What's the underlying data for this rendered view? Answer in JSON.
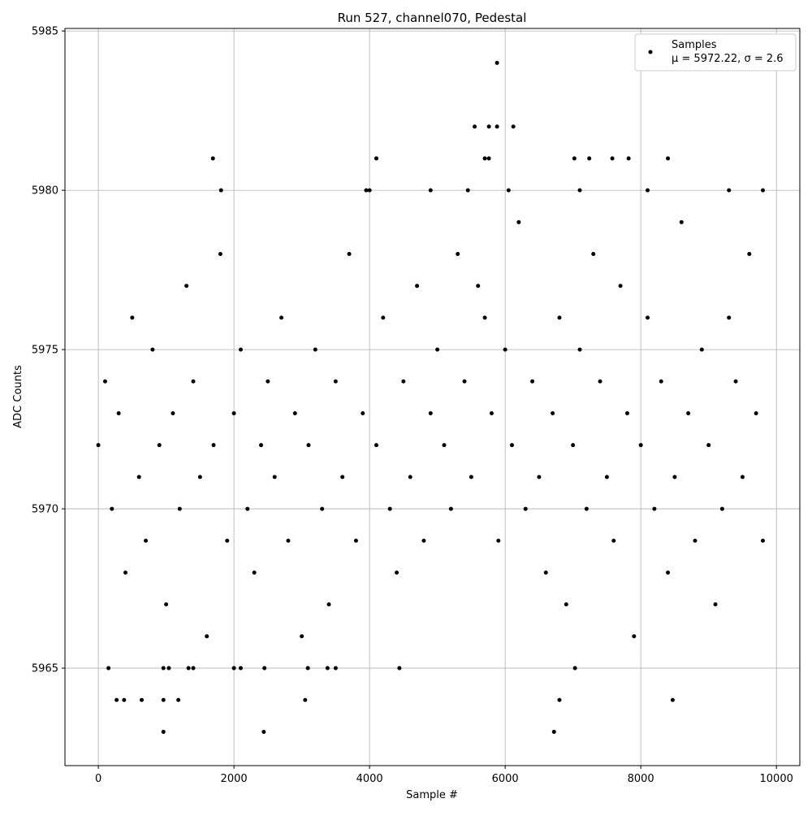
{
  "chart_data": {
    "type": "scatter",
    "title": "Run 527, channel070, Pedestal",
    "x_label": "Sample #",
    "y_label": "ADC Counts",
    "legend_note": "μ = 5972.22, σ = 2.6",
    "legend": "upper right",
    "grid": true,
    "xlim": [
      -492,
      10345
    ],
    "ylim": [
      5961.94,
      5985.08
    ],
    "xticks": [
      0,
      2000,
      4000,
      6000,
      8000,
      10000
    ],
    "yticks": [
      5965,
      5970,
      5975,
      5980,
      5985
    ],
    "series": [
      {
        "name": "Samples",
        "color": "#000000",
        "x": [
          0,
          100,
          200,
          300,
          400,
          500,
          600,
          700,
          800,
          900,
          1000,
          1100,
          1200,
          1300,
          1400,
          1500,
          1600,
          1700,
          1800,
          1900,
          2000,
          2100,
          2200,
          2300,
          2400,
          2500,
          2600,
          2700,
          2800,
          2900,
          3000,
          3100,
          3200,
          3300,
          3400,
          3500,
          3600,
          3700,
          3800,
          3900,
          4000,
          4100,
          4200,
          4300,
          4400,
          4500,
          4600,
          4700,
          4800,
          4900,
          5000,
          5100,
          5200,
          5300,
          5400,
          5500,
          5600,
          5700,
          5800,
          5900,
          6000,
          6100,
          6200,
          6300,
          6400,
          6500,
          6600,
          6700,
          6800,
          6900,
          7000,
          7100,
          7200,
          7300,
          7400,
          7500,
          7600,
          7700,
          7800,
          7900,
          8000,
          8100,
          8200,
          8300,
          8400,
          8500,
          8600,
          8700,
          8800,
          8900,
          9000,
          9100,
          9200,
          9300,
          9400,
          9500,
          9600,
          9700,
          9800,
          5880,
          5550,
          5760,
          5880,
          6120,
          1690,
          4100,
          5700,
          5760,
          7020,
          7240,
          7580,
          7820,
          8400,
          960,
          2440,
          6720,
          270,
          380,
          640,
          960,
          1180,
          3050,
          6800,
          8470,
          150,
          960,
          1040,
          1330,
          1400,
          2000,
          2100,
          2450,
          3090,
          3380,
          3500,
          4440,
          7030,
          1810,
          3950,
          4900,
          5450,
          6050,
          7100,
          8100,
          9300,
          9800
        ],
        "values": [
          5972,
          5974,
          5970,
          5973,
          5968,
          5976,
          5971,
          5969,
          5975,
          5972,
          5967,
          5973,
          5970,
          5977,
          5974,
          5971,
          5966,
          5972,
          5978,
          5969,
          5973,
          5975,
          5970,
          5968,
          5972,
          5974,
          5971,
          5976,
          5969,
          5973,
          5966,
          5972,
          5975,
          5970,
          5967,
          5974,
          5971,
          5978,
          5969,
          5973,
          5980,
          5972,
          5976,
          5970,
          5968,
          5974,
          5971,
          5977,
          5969,
          5973,
          5975,
          5972,
          5970,
          5978,
          5974,
          5971,
          5977,
          5976,
          5973,
          5969,
          5975,
          5972,
          5979,
          5970,
          5974,
          5971,
          5968,
          5973,
          5976,
          5967,
          5972,
          5975,
          5970,
          5978,
          5974,
          5971,
          5969,
          5977,
          5973,
          5966,
          5972,
          5976,
          5970,
          5974,
          5968,
          5971,
          5979,
          5973,
          5969,
          5975,
          5972,
          5967,
          5970,
          5976,
          5974,
          5971,
          5978,
          5973,
          5969,
          5984,
          5982,
          5982,
          5982,
          5982,
          5981,
          5981,
          5981,
          5981,
          5981,
          5981,
          5981,
          5981,
          5981,
          5963,
          5963,
          5963,
          5964,
          5964,
          5964,
          5964,
          5964,
          5964,
          5964,
          5964,
          5965,
          5965,
          5965,
          5965,
          5965,
          5965,
          5965,
          5965,
          5965,
          5965,
          5965,
          5965,
          5965,
          5980,
          5980,
          5980,
          5980,
          5980,
          5980,
          5980,
          5980,
          5980
        ]
      }
    ]
  }
}
